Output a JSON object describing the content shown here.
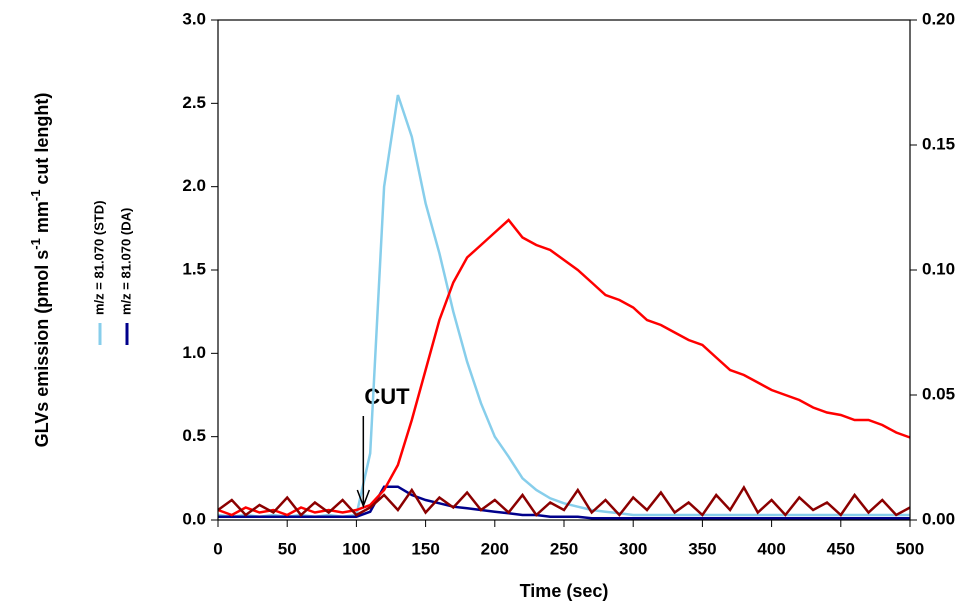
{
  "chart_data": {
    "type": "line",
    "xlabel": "Time (sec)",
    "ylabel": [
      "GLVs emission (pmol s",
      "-1",
      " mm",
      "-1",
      " cut lenght)"
    ],
    "annotation": "CUT",
    "annotation_x": 105,
    "x": [
      0,
      10,
      20,
      30,
      40,
      50,
      60,
      70,
      80,
      90,
      100,
      110,
      120,
      130,
      140,
      150,
      160,
      170,
      180,
      190,
      200,
      210,
      220,
      230,
      240,
      250,
      260,
      270,
      280,
      290,
      300,
      310,
      320,
      330,
      340,
      350,
      360,
      370,
      380,
      390,
      400,
      410,
      420,
      430,
      440,
      450,
      460,
      470,
      480,
      490,
      500
    ],
    "xlim": [
      0,
      500
    ],
    "xticks": [
      0,
      50,
      100,
      150,
      200,
      250,
      300,
      350,
      400,
      450,
      500
    ],
    "ylim": [
      0,
      3
    ],
    "yticks": [
      {
        "value": 0,
        "label": "0.0"
      },
      {
        "value": 0.5,
        "label": "0.5"
      },
      {
        "value": 1,
        "label": "1.0"
      },
      {
        "value": 1.5,
        "label": "1.5"
      },
      {
        "value": 2,
        "label": "2.0"
      },
      {
        "value": 2.5,
        "label": "2.5"
      },
      {
        "value": 3,
        "label": "3.0"
      }
    ],
    "y2lim": [
      0,
      0.2
    ],
    "y2ticks": [
      {
        "value": 0,
        "label": "0.00"
      },
      0.05,
      {
        "value": 0.1,
        "label": "0.10"
      },
      0.15,
      {
        "value": 0.2,
        "label": "0.20"
      }
    ],
    "series": [
      {
        "name": "m/z = 81.070 (STD)",
        "color": "#87ceeb",
        "values": [
          0.03,
          0.02,
          0.03,
          0.02,
          0.03,
          0.02,
          0.03,
          0.02,
          0.03,
          0.02,
          0.03,
          0.4,
          2.0,
          2.55,
          2.3,
          1.9,
          1.6,
          1.25,
          0.95,
          0.7,
          0.5,
          0.38,
          0.25,
          0.18,
          0.13,
          0.1,
          0.08,
          0.06,
          0.05,
          0.04,
          0.03,
          0.03,
          0.03,
          0.03,
          0.03,
          0.03,
          0.03,
          0.03,
          0.03,
          0.03,
          0.03,
          0.03,
          0.03,
          0.03,
          0.03,
          0.03,
          0.03,
          0.03,
          0.03,
          0.03,
          0.03
        ]
      },
      {
        "name": "m/z = 81.070 (DA)",
        "color": "#00008b",
        "values": [
          0.02,
          0.02,
          0.02,
          0.02,
          0.02,
          0.02,
          0.02,
          0.02,
          0.02,
          0.02,
          0.02,
          0.05,
          0.2,
          0.2,
          0.15,
          0.12,
          0.1,
          0.08,
          0.07,
          0.06,
          0.05,
          0.04,
          0.03,
          0.03,
          0.02,
          0.02,
          0.02,
          0.01,
          0.01,
          0.01,
          0.01,
          0.01,
          0.01,
          0.01,
          0.01,
          0.01,
          0.01,
          0.01,
          0.01,
          0.01,
          0.01,
          0.01,
          0.01,
          0.01,
          0.01,
          0.01,
          0.01,
          0.01,
          0.01,
          0.01,
          0.01
        ]
      },
      {
        "color": "#ff0000",
        "axis": "y2",
        "values": [
          0.004,
          0.002,
          0.005,
          0.003,
          0.004,
          0.002,
          0.005,
          0.003,
          0.004,
          0.003,
          0.004,
          0.006,
          0.012,
          0.022,
          0.04,
          0.06,
          0.08,
          0.095,
          0.105,
          0.11,
          0.115,
          0.12,
          0.113,
          0.11,
          0.108,
          0.104,
          0.1,
          0.095,
          0.09,
          0.088,
          0.085,
          0.08,
          0.078,
          0.075,
          0.072,
          0.07,
          0.065,
          0.06,
          0.058,
          0.055,
          0.052,
          0.05,
          0.048,
          0.045,
          0.043,
          0.042,
          0.04,
          0.04,
          0.038,
          0.035,
          0.033
        ]
      },
      {
        "color": "#8b0000",
        "axis": "y2",
        "values": [
          0.004,
          0.008,
          0.002,
          0.006,
          0.003,
          0.009,
          0.002,
          0.007,
          0.003,
          0.008,
          0.002,
          0.005,
          0.01,
          0.004,
          0.012,
          0.003,
          0.009,
          0.005,
          0.011,
          0.004,
          0.008,
          0.003,
          0.01,
          0.002,
          0.007,
          0.004,
          0.012,
          0.003,
          0.008,
          0.002,
          0.009,
          0.004,
          0.011,
          0.003,
          0.007,
          0.002,
          0.01,
          0.004,
          0.013,
          0.003,
          0.008,
          0.002,
          0.009,
          0.004,
          0.007,
          0.002,
          0.01,
          0.003,
          0.008,
          0.002,
          0.005
        ]
      }
    ]
  }
}
